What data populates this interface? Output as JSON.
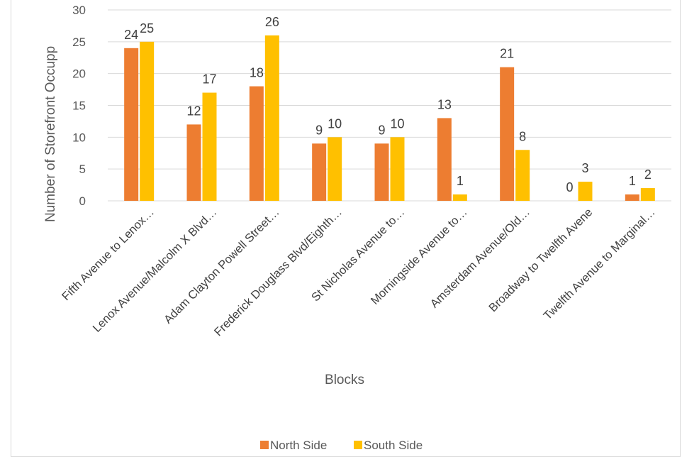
{
  "chart_data": {
    "type": "bar",
    "categories": [
      "Fifth Avenue to Lenox…",
      "Lenox Avenue/Malcolm X Blvd…",
      "Adam Clayton Powell Street…",
      "Frederick Douglass Blvd/Eighth…",
      "St Nicholas Avenue to…",
      "Morningside Avenue to…",
      "Amsterdam Avenue/Old…",
      "Broadway to Twelfth Avene",
      "Twelfth Avenue to Marginal…"
    ],
    "series": [
      {
        "name": "North Side",
        "color": "#ED7D31",
        "values": [
          24,
          12,
          18,
          9,
          9,
          13,
          21,
          0,
          1
        ]
      },
      {
        "name": "South Side",
        "color": "#FFC000",
        "values": [
          25,
          17,
          26,
          10,
          10,
          1,
          8,
          3,
          2
        ]
      }
    ],
    "xlabel": "Blocks",
    "ylabel": "Number of Storefront Occupp",
    "ylim": [
      0,
      30
    ],
    "yticks": [
      0,
      5,
      10,
      15,
      20,
      25,
      30
    ],
    "grid": true,
    "legend_position": "bottom"
  }
}
